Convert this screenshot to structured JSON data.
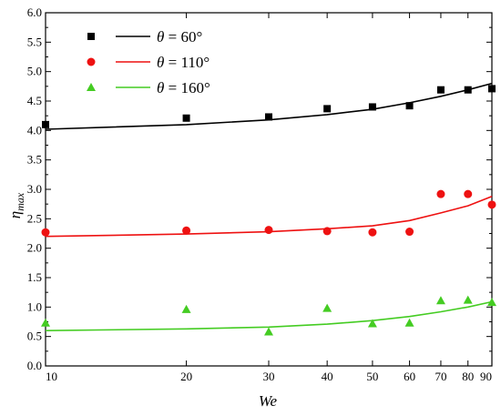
{
  "chart_data": {
    "type": "scatter",
    "title": "",
    "xlabel": "We",
    "ylabel_main": "η",
    "ylabel_sub": "max",
    "xlim": [
      10,
      90
    ],
    "ylim": [
      0.0,
      6.0
    ],
    "xscale": "log",
    "xticks": [
      10,
      20,
      30,
      40,
      50,
      60,
      70,
      80,
      90
    ],
    "xtick_labels": [
      "10",
      "20",
      "30",
      "40",
      "50",
      "60",
      "70",
      "80",
      "90"
    ],
    "yticks": [
      0.0,
      0.5,
      1.0,
      1.5,
      2.0,
      2.5,
      3.0,
      3.5,
      4.0,
      4.5,
      5.0,
      5.5,
      6.0
    ],
    "ytick_labels": [
      "0.0",
      "0.5",
      "1.0",
      "1.5",
      "2.0",
      "2.5",
      "3.0",
      "3.5",
      "4.0",
      "4.5",
      "5.0",
      "5.5",
      "6.0"
    ],
    "grid": false,
    "legend_position": "top-left",
    "series": [
      {
        "name": "θ = 60°",
        "legend_symbol": "θ",
        "legend_value": "= 60°",
        "marker": "square",
        "color": "#000000",
        "x": [
          10,
          20,
          30,
          40,
          50,
          60,
          70,
          80,
          90
        ],
        "y": [
          4.1,
          4.21,
          4.23,
          4.37,
          4.4,
          4.42,
          4.69,
          4.69,
          4.71
        ],
        "fit": {
          "x": [
            10,
            20,
            30,
            40,
            50,
            60,
            70,
            80,
            90
          ],
          "y": [
            4.02,
            4.1,
            4.18,
            4.27,
            4.36,
            4.47,
            4.58,
            4.69,
            4.8
          ]
        }
      },
      {
        "name": "θ = 110°",
        "legend_symbol": "θ",
        "legend_value": "= 110°",
        "marker": "circle",
        "color": "#ee1111",
        "x": [
          10,
          20,
          30,
          40,
          50,
          60,
          70,
          80,
          90
        ],
        "y": [
          2.27,
          2.3,
          2.31,
          2.29,
          2.27,
          2.28,
          2.92,
          2.92,
          2.74
        ],
        "fit": {
          "x": [
            10,
            20,
            30,
            40,
            50,
            60,
            70,
            80,
            90
          ],
          "y": [
            2.2,
            2.24,
            2.28,
            2.33,
            2.38,
            2.47,
            2.6,
            2.72,
            2.88
          ]
        }
      },
      {
        "name": "θ = 160°",
        "legend_symbol": "θ",
        "legend_value": "= 160°",
        "marker": "triangle",
        "color": "#44cc22",
        "x": [
          10,
          20,
          30,
          40,
          50,
          60,
          70,
          80,
          90
        ],
        "y": [
          0.73,
          0.96,
          0.58,
          0.98,
          0.72,
          0.73,
          1.11,
          1.12,
          1.08
        ],
        "fit": {
          "x": [
            10,
            20,
            30,
            40,
            50,
            60,
            70,
            80,
            90
          ],
          "y": [
            0.6,
            0.63,
            0.66,
            0.71,
            0.77,
            0.84,
            0.92,
            1.0,
            1.09
          ]
        }
      }
    ]
  }
}
